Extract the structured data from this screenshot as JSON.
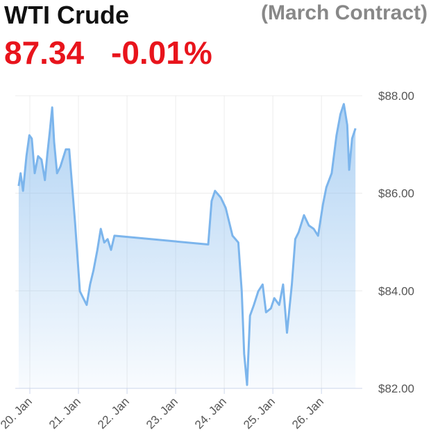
{
  "chart_data": {
    "type": "area",
    "title": "WTI Crude",
    "subtitle": "(March Contract)",
    "price": "87.34",
    "change": "-0.01%",
    "color": "#7cb5ec",
    "grid": true,
    "x": [
      19.77,
      19.81,
      19.86,
      19.93,
      19.99,
      20.04,
      20.1,
      20.17,
      20.24,
      20.31,
      20.36,
      20.41,
      20.46,
      20.5,
      20.56,
      20.63,
      20.74,
      20.81,
      20.93,
      21.03,
      21.1,
      21.17,
      21.24,
      21.31,
      21.39,
      21.46,
      21.53,
      21.6,
      21.67,
      21.74,
      23.67,
      23.74,
      23.81,
      23.93,
      24.03,
      24.17,
      24.29,
      24.36,
      24.41,
      24.47,
      24.53,
      24.61,
      24.7,
      24.79,
      24.86,
      24.96,
      25.03,
      25.13,
      25.21,
      25.29,
      25.39,
      25.46,
      25.53,
      25.64,
      25.74,
      25.84,
      25.93,
      26.03,
      26.1,
      26.21,
      26.31,
      26.39,
      26.46,
      26.53,
      26.57,
      26.63,
      26.7
    ],
    "y": [
      86.15,
      86.41,
      86.05,
      86.76,
      87.19,
      87.12,
      86.41,
      86.76,
      86.69,
      86.27,
      86.8,
      87.26,
      87.76,
      87.05,
      86.41,
      86.55,
      86.9,
      86.9,
      85.41,
      83.99,
      83.85,
      83.71,
      84.13,
      84.42,
      84.84,
      85.27,
      84.99,
      85.06,
      84.84,
      85.13,
      84.95,
      85.84,
      86.05,
      85.91,
      85.7,
      85.13,
      84.99,
      83.99,
      82.71,
      82.07,
      83.49,
      83.71,
      83.99,
      84.13,
      83.56,
      83.64,
      83.85,
      83.71,
      84.13,
      83.14,
      84.13,
      85.06,
      85.2,
      85.55,
      85.34,
      85.27,
      85.13,
      85.77,
      86.12,
      86.41,
      87.19,
      87.62,
      87.83,
      87.4,
      86.48,
      87.12,
      87.33
    ],
    "xlim": [
      19.7,
      26.84
    ],
    "xticks": [
      {
        "value": 20,
        "label": "20. Jan"
      },
      {
        "value": 21,
        "label": "21. Jan"
      },
      {
        "value": 22,
        "label": "22. Jan"
      },
      {
        "value": 23,
        "label": "23. Jan"
      },
      {
        "value": 24,
        "label": "24. Jan"
      },
      {
        "value": 25,
        "label": "25. Jan"
      },
      {
        "value": 26,
        "label": "26. Jan"
      }
    ],
    "ylim": [
      82,
      88
    ],
    "yticks": [
      {
        "value": 82,
        "label": "$82.00"
      },
      {
        "value": 84,
        "label": "$84.00"
      },
      {
        "value": 86,
        "label": "$86.00"
      },
      {
        "value": 88,
        "label": "$88.00"
      }
    ]
  }
}
